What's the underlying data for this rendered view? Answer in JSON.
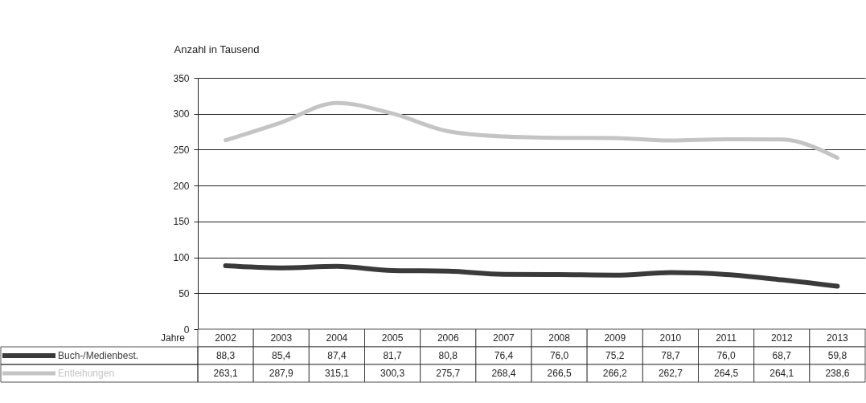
{
  "chart_data": {
    "type": "line",
    "ylabel": "Anzahl in Tausend",
    "xlabel": "Jahre",
    "categories": [
      "2002",
      "2003",
      "2004",
      "2005",
      "2006",
      "2007",
      "2008",
      "2009",
      "2010",
      "2011",
      "2012",
      "2013"
    ],
    "series": [
      {
        "name": "Buch-/Medienbest.",
        "color": "#3a3a3a",
        "values": [
          88.3,
          85.4,
          87.4,
          81.7,
          80.8,
          76.4,
          76.0,
          75.2,
          78.7,
          76.0,
          68.7,
          59.8
        ],
        "value_labels": [
          "88,3",
          "85,4",
          "87,4",
          "81,7",
          "80,8",
          "76,4",
          "76,0",
          "75,2",
          "78,7",
          "76,0",
          "68,7",
          "59,8"
        ]
      },
      {
        "name": "Entleihungen",
        "color": "#c4c4c4",
        "values": [
          263.1,
          287.9,
          315.1,
          300.3,
          275.7,
          268.4,
          266.5,
          266.2,
          262.7,
          264.5,
          264.1,
          238.6
        ],
        "value_labels": [
          "263,1",
          "287,9",
          "315,1",
          "300,3",
          "275,7",
          "268,4",
          "266,5",
          "266,2",
          "262,7",
          "264,5",
          "264,1",
          "238,6"
        ]
      }
    ],
    "ylim": [
      0,
      350
    ],
    "yticks": [
      0,
      50,
      100,
      150,
      200,
      250,
      300,
      350
    ],
    "grid": "y",
    "legend": "bottom",
    "line_style": "solid"
  }
}
